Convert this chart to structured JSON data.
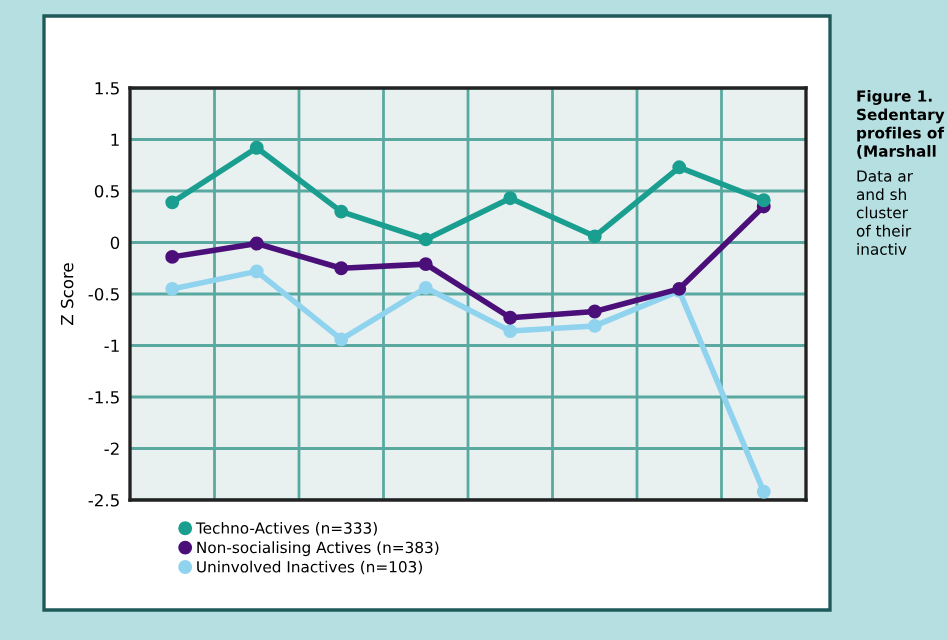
{
  "chart_data": {
    "type": "line",
    "ylabel": "Z Score",
    "categories": [
      null,
      null,
      null,
      null,
      null,
      null,
      null,
      null
    ],
    "series": [
      {
        "name": "Techno-Actives (n=333)",
        "color": "#1a9e8f",
        "values": [
          0.39,
          0.92,
          0.3,
          0.03,
          0.43,
          0.06,
          0.73,
          0.41
        ]
      },
      {
        "name": "Non-socialising Actives (n=383)",
        "color": "#4b0f7a",
        "values": [
          -0.14,
          -0.01,
          -0.25,
          -0.21,
          -0.73,
          -0.67,
          -0.45,
          0.35
        ]
      },
      {
        "name": "Uninvolved Inactives (n=103)",
        "color": "#8fd3ee",
        "values": [
          -0.45,
          -0.28,
          -0.94,
          -0.44,
          -0.86,
          -0.81,
          -0.47,
          -2.42
        ]
      }
    ],
    "ylim": [
      -2.5,
      1.5
    ],
    "yticks": [
      -2.5,
      -2,
      -1.5,
      -1,
      -0.5,
      0,
      0.5,
      1,
      1.5
    ],
    "grid": true,
    "legend": "bottom",
    "marker": "circle",
    "line_style": "solid",
    "annotations": [
      "Figure 1.\nSedentary\nprofiles of\n(Marshall",
      "Data ar\nand sh\ncluster\nof their\ninactiv"
    ]
  }
}
